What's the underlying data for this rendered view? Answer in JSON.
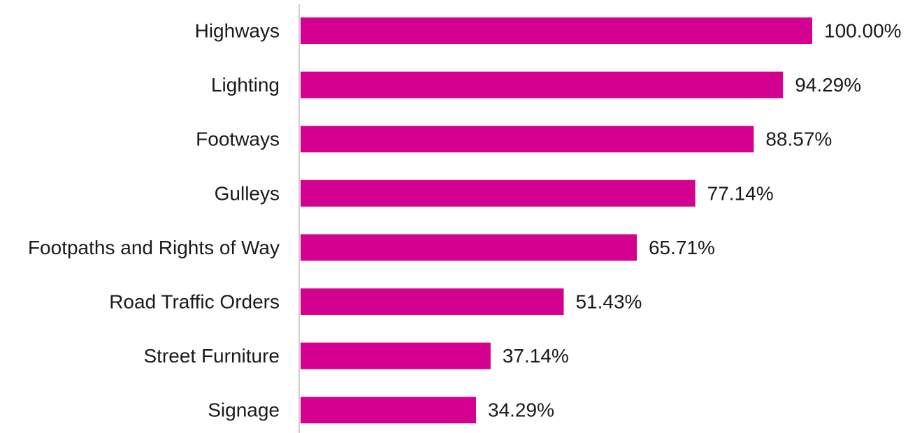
{
  "chart_data": {
    "type": "bar",
    "orientation": "horizontal",
    "categories": [
      "Highways",
      "Lighting",
      "Footways",
      "Gulleys",
      "Footpaths and Rights of Way",
      "Road Traffic Orders",
      "Street Furniture",
      "Signage"
    ],
    "values": [
      100.0,
      94.29,
      88.57,
      77.14,
      65.71,
      51.43,
      37.14,
      34.29
    ],
    "value_labels": [
      "100.00%",
      "94.29%",
      "88.57%",
      "77.14%",
      "65.71%",
      "51.43%",
      "37.14%",
      "34.29%"
    ],
    "xlim": [
      0,
      100
    ],
    "grid": false,
    "bar_color": "#d4008f",
    "axis_color": "#d0d0d0"
  }
}
